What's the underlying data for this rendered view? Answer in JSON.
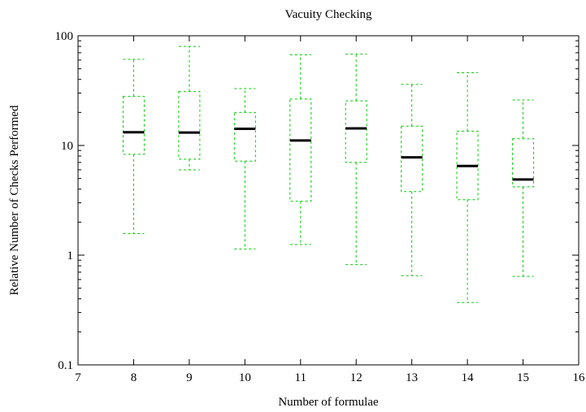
{
  "chart_data": {
    "type": "boxplot",
    "title": "Vacuity Checking",
    "xlabel": "Number of formulae",
    "ylabel": "Relative Number of Checks Performed",
    "xlim": [
      7,
      16
    ],
    "ylim": [
      0.1,
      100
    ],
    "yscale": "log",
    "x_ticks": [
      "7",
      "8",
      "9",
      "10",
      "11",
      "12",
      "13",
      "14",
      "15",
      "16"
    ],
    "y_ticks": [
      {
        "value": 0.1,
        "label": "0.1"
      },
      {
        "value": 1,
        "label": "1"
      },
      {
        "value": 10,
        "label": "10"
      },
      {
        "value": 100,
        "label": "100"
      }
    ],
    "grid": false,
    "colors": {
      "box": "#00cc00",
      "median": "#000000",
      "axes": "#000000"
    },
    "boxes": [
      {
        "x": 8,
        "min": 1.57,
        "q1": 8.3,
        "median": 13.2,
        "q3": 28,
        "max": 61
      },
      {
        "x": 9,
        "min": 6.0,
        "q1": 7.5,
        "median": 13.1,
        "q3": 31,
        "max": 80
      },
      {
        "x": 10,
        "min": 1.14,
        "q1": 7.2,
        "median": 14.2,
        "q3": 20,
        "max": 33
      },
      {
        "x": 11,
        "min": 1.25,
        "q1": 3.1,
        "median": 11.1,
        "q3": 26.5,
        "max": 67
      },
      {
        "x": 12,
        "min": 0.82,
        "q1": 7.0,
        "median": 14.3,
        "q3": 25.5,
        "max": 68
      },
      {
        "x": 13,
        "min": 0.65,
        "q1": 3.8,
        "median": 7.8,
        "q3": 15,
        "max": 36
      },
      {
        "x": 14,
        "min": 0.37,
        "q1": 3.2,
        "median": 6.5,
        "q3": 13.5,
        "max": 46
      },
      {
        "x": 15,
        "min": 0.64,
        "q1": 4.2,
        "median": 4.9,
        "q3": 11.5,
        "max": 26
      }
    ]
  }
}
